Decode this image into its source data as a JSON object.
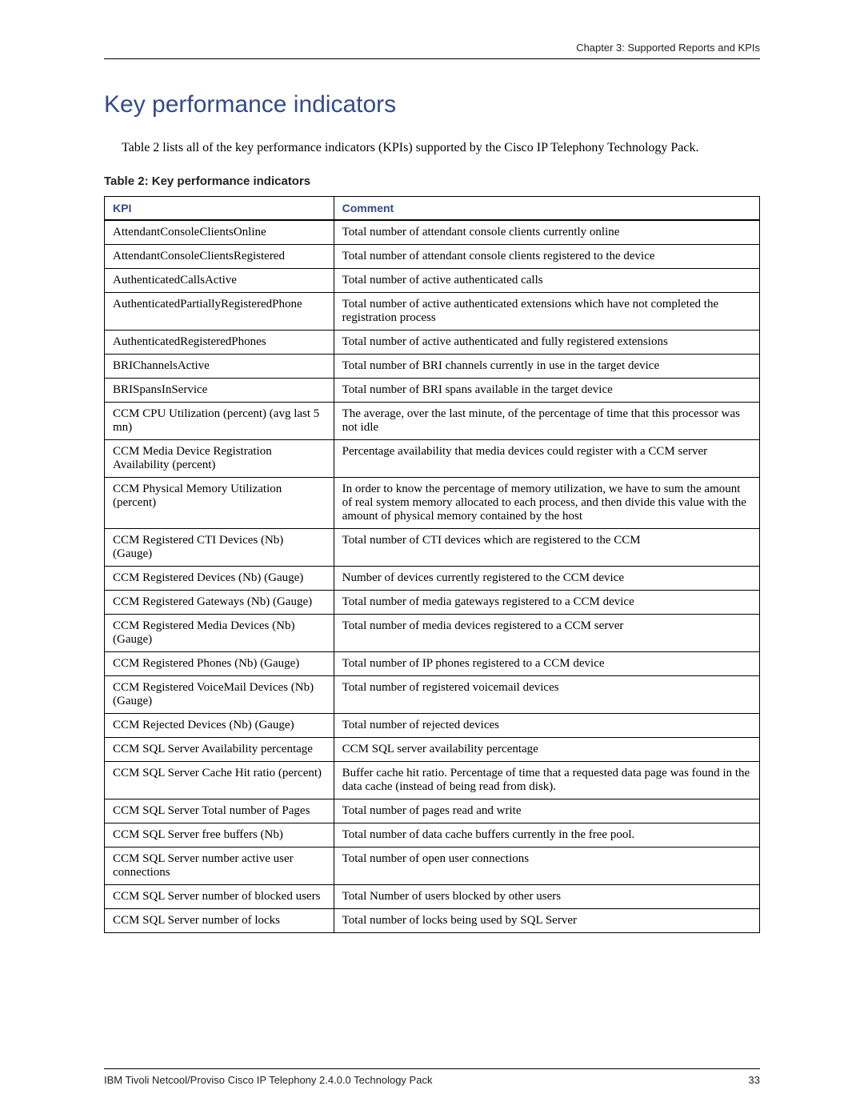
{
  "header": {
    "chapter": "Chapter 3:  Supported Reports and KPIs"
  },
  "section": {
    "title": "Key performance indicators",
    "intro": "Table 2 lists all of the key performance indicators (KPIs) supported by the Cisco IP Telephony Technology Pack.",
    "table_caption": "Table 2:  Key performance indicators"
  },
  "table": {
    "columns": [
      "KPI",
      "Comment"
    ],
    "rows": [
      [
        "AttendantConsoleClientsOnline",
        "Total number of attendant console clients currently online"
      ],
      [
        "AttendantConsoleClientsRegistered",
        "Total number of attendant console clients registered to the device"
      ],
      [
        "AuthenticatedCallsActive",
        "Total number of active authenticated calls"
      ],
      [
        "AuthenticatedPartiallyRegisteredPhone",
        "Total number of active authenticated extensions which have not completed the registration process"
      ],
      [
        "AuthenticatedRegisteredPhones",
        "Total number of active authenticated and fully registered extensions"
      ],
      [
        "BRIChannelsActive",
        "Total number of BRI channels currently in use in the target device"
      ],
      [
        "BRISpansInService",
        "Total number of BRI spans available in the target device"
      ],
      [
        "CCM CPU Utilization (percent) (avg last 5 mn)",
        "The average, over the last minute, of the percentage of time that this processor was not idle"
      ],
      [
        "CCM Media Device Registration Availability (percent)",
        "Percentage availability that media devices could register with a CCM server"
      ],
      [
        "CCM Physical Memory Utilization (percent)",
        "In order to know the percentage of memory utilization, we have to sum the amount of real system memory allocated to each process, and then divide this value with the amount of physical memory contained by the host"
      ],
      [
        "CCM Registered CTI Devices (Nb) (Gauge)",
        "Total number of CTI devices which are registered to the CCM"
      ],
      [
        "CCM Registered Devices (Nb) (Gauge)",
        "Number of devices currently registered to the CCM device"
      ],
      [
        "CCM Registered Gateways (Nb) (Gauge)",
        "Total number of media gateways registered to a CCM device"
      ],
      [
        "CCM Registered Media Devices (Nb) (Gauge)",
        "Total number of media devices registered to a CCM server"
      ],
      [
        "CCM Registered Phones (Nb) (Gauge)",
        "Total number of IP phones registered to a CCM device"
      ],
      [
        "CCM Registered VoiceMail Devices (Nb) (Gauge)",
        "Total number of registered voicemail devices"
      ],
      [
        "CCM Rejected Devices (Nb) (Gauge)",
        "Total number of rejected devices"
      ],
      [
        "CCM SQL Server Availability percentage",
        "CCM SQL server availability percentage"
      ],
      [
        "CCM SQL Server Cache Hit ratio (percent)",
        "Buffer cache hit ratio. Percentage of time that a requested data page was found in the data cache (instead of being read from disk)."
      ],
      [
        "CCM SQL Server Total number of Pages",
        "Total number of pages read and write"
      ],
      [
        "CCM SQL Server free buffers (Nb)",
        "Total number of data cache buffers currently in the free pool."
      ],
      [
        "CCM SQL Server number active user connections",
        "Total number of open user connections"
      ],
      [
        "CCM SQL Server number of blocked users",
        "Total Number of users blocked by other users"
      ],
      [
        "CCM SQL Server number of locks",
        "Total number of locks being used by SQL Server"
      ]
    ]
  },
  "footer": {
    "left": "IBM Tivoli Netcool/Proviso Cisco IP Telephony 2.4.0.0 Technology Pack",
    "page": "33"
  },
  "colors": {
    "accent": "#344a8a",
    "text": "#000000",
    "rule": "#000000"
  }
}
